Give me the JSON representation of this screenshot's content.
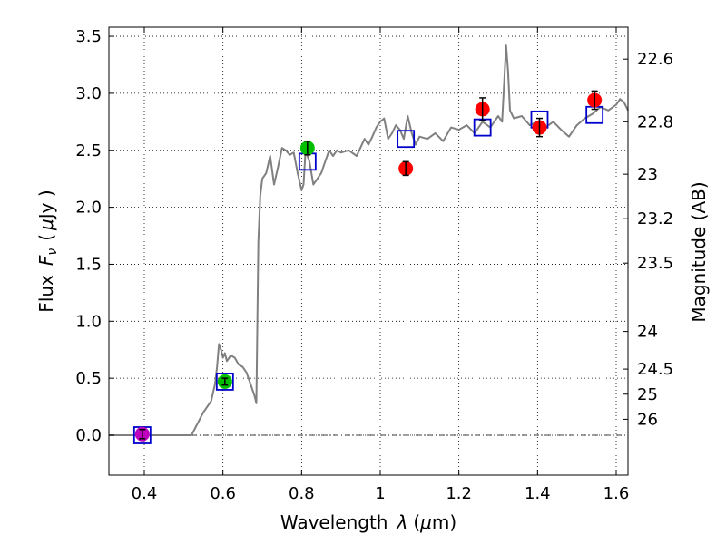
{
  "chart_data": {
    "type": "scatter",
    "title": "",
    "xlabel_text": "Wavelength",
    "xlabel_symbol": "λ",
    "xlabel_unit_open": "(",
    "xlabel_unit_mu": "μ",
    "xlabel_unit_rest": "m)",
    "ylabel_text": "Flux",
    "ylabel_symbol": "F",
    "ylabel_symbol_sub": "ν",
    "ylabel_unit_open": "(",
    "ylabel_unit_mu": "μ",
    "ylabel_unit_rest": "Jy )",
    "y2label": "Magnitude (AB)",
    "xlim": [
      0.31,
      1.63
    ],
    "ylim": [
      -0.35,
      3.58
    ],
    "grid": true,
    "x_ticks": [
      {
        "value": 0.4,
        "label": "0.4"
      },
      {
        "value": 0.6,
        "label": "0.6"
      },
      {
        "value": 0.8,
        "label": "0.8"
      },
      {
        "value": 1.0,
        "label": "1"
      },
      {
        "value": 1.2,
        "label": "1.2"
      },
      {
        "value": 1.4,
        "label": "1.4"
      },
      {
        "value": 1.6,
        "label": "1.6"
      }
    ],
    "y_ticks": [
      {
        "value": 0.0,
        "label": "0.0"
      },
      {
        "value": 0.5,
        "label": "0.5"
      },
      {
        "value": 1.0,
        "label": "1.0"
      },
      {
        "value": 1.5,
        "label": "1.5"
      },
      {
        "value": 2.0,
        "label": "2.0"
      },
      {
        "value": 2.5,
        "label": "2.5"
      },
      {
        "value": 3.0,
        "label": "3.0"
      },
      {
        "value": 3.5,
        "label": "3.5"
      }
    ],
    "magnitude_ticks": [
      {
        "flux": 3.3,
        "label": "22.6"
      },
      {
        "flux": 2.75,
        "label": "22.8"
      },
      {
        "flux": 2.29,
        "label": "23"
      },
      {
        "flux": 1.9,
        "label": "23.2"
      },
      {
        "flux": 1.51,
        "label": "23.5"
      },
      {
        "flux": 0.91,
        "label": "24"
      },
      {
        "flux": 0.58,
        "label": "24.5"
      },
      {
        "flux": 0.36,
        "label": "25"
      },
      {
        "flux": 0.14,
        "label": "26"
      }
    ],
    "model_spectrum": {
      "color": "#808080",
      "x": [
        0.31,
        0.52,
        0.55,
        0.57,
        0.58,
        0.585,
        0.59,
        0.595,
        0.6,
        0.605,
        0.61,
        0.62,
        0.63,
        0.64,
        0.65,
        0.66,
        0.67,
        0.68,
        0.685,
        0.69,
        0.695,
        0.7,
        0.71,
        0.72,
        0.73,
        0.74,
        0.75,
        0.76,
        0.77,
        0.78,
        0.79,
        0.8,
        0.805,
        0.81,
        0.82,
        0.83,
        0.84,
        0.85,
        0.86,
        0.87,
        0.88,
        0.89,
        0.9,
        0.92,
        0.94,
        0.96,
        0.97,
        0.98,
        0.99,
        1.0,
        1.01,
        1.02,
        1.03,
        1.04,
        1.05,
        1.06,
        1.07,
        1.08,
        1.09,
        1.1,
        1.12,
        1.14,
        1.16,
        1.18,
        1.2,
        1.22,
        1.24,
        1.26,
        1.28,
        1.3,
        1.31,
        1.32,
        1.325,
        1.33,
        1.34,
        1.36,
        1.38,
        1.4,
        1.42,
        1.44,
        1.46,
        1.48,
        1.5,
        1.52,
        1.54,
        1.56,
        1.58,
        1.6,
        1.61,
        1.62,
        1.63
      ],
      "y": [
        0.0,
        0.0,
        0.2,
        0.3,
        0.45,
        0.6,
        0.8,
        0.75,
        0.68,
        0.72,
        0.65,
        0.7,
        0.68,
        0.62,
        0.6,
        0.55,
        0.45,
        0.35,
        0.28,
        1.7,
        2.1,
        2.25,
        2.3,
        2.45,
        2.2,
        2.35,
        2.52,
        2.5,
        2.46,
        2.48,
        2.3,
        2.15,
        2.2,
        2.5,
        2.4,
        2.2,
        2.25,
        2.3,
        2.4,
        2.5,
        2.45,
        2.5,
        2.48,
        2.5,
        2.45,
        2.6,
        2.55,
        2.62,
        2.7,
        2.75,
        2.78,
        2.6,
        2.65,
        2.72,
        2.68,
        2.6,
        2.8,
        2.65,
        2.55,
        2.62,
        2.6,
        2.65,
        2.58,
        2.7,
        2.68,
        2.72,
        2.65,
        2.75,
        2.7,
        2.8,
        2.75,
        3.42,
        3.2,
        2.85,
        2.78,
        2.8,
        2.72,
        2.75,
        2.7,
        2.75,
        2.68,
        2.62,
        2.72,
        2.78,
        2.82,
        2.88,
        2.85,
        2.9,
        2.95,
        2.92,
        2.85
      ]
    },
    "dashed_zero_line": true,
    "model_photometry": {
      "name": "",
      "color": "#0000cc",
      "x": [
        0.395,
        0.605,
        0.815,
        1.065,
        1.26,
        1.405,
        1.545
      ],
      "y": [
        0.0,
        0.47,
        2.4,
        2.6,
        2.7,
        2.77,
        2.81
      ]
    },
    "observed_photometry": [
      {
        "x": 0.395,
        "y": 0.01,
        "err": 0.04,
        "color": "#bf00bf"
      },
      {
        "x": 0.605,
        "y": 0.47,
        "err": 0.03,
        "color": "#00bf00"
      },
      {
        "x": 0.815,
        "y": 2.52,
        "err": 0.06,
        "color": "#00bf00"
      },
      {
        "x": 1.065,
        "y": 2.34,
        "err": 0.06,
        "color": "#ff0000"
      },
      {
        "x": 1.26,
        "y": 2.86,
        "err": 0.1,
        "color": "#ff0000"
      },
      {
        "x": 1.405,
        "y": 2.7,
        "err": 0.08,
        "color": "#ff0000"
      },
      {
        "x": 1.545,
        "y": 2.94,
        "err": 0.08,
        "color": "#ff0000"
      }
    ]
  }
}
